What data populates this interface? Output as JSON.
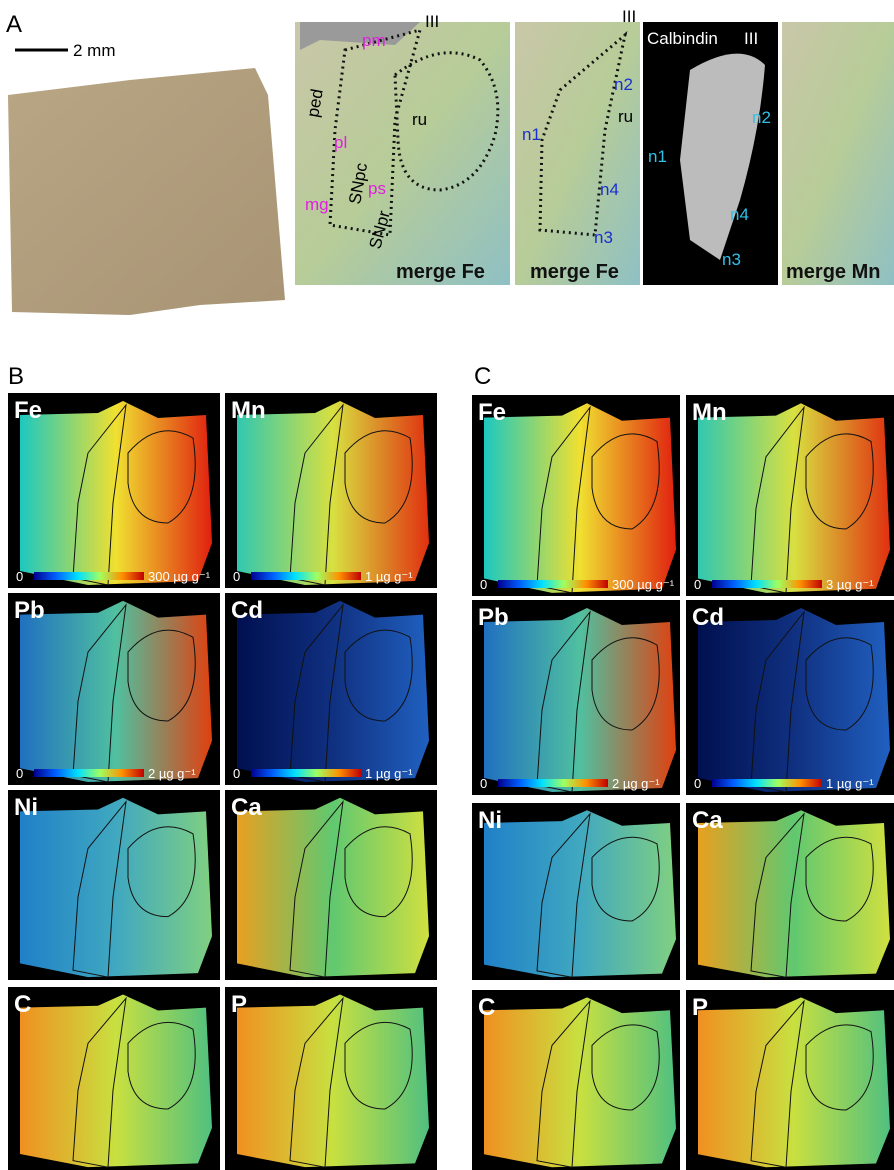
{
  "panel_a": {
    "label": "A",
    "scale_bar": "2 mm",
    "image_1": {
      "labels": [
        "III",
        "pm",
        "ped",
        "pl",
        "SNpc",
        "ps",
        "mg",
        "SNpr",
        "ru"
      ],
      "caption": "merge Fe"
    },
    "image_2": {
      "labels": [
        "III",
        "n2",
        "ru",
        "n1",
        "n4",
        "n3"
      ],
      "caption": "merge Fe"
    },
    "image_3": {
      "title": "Calbindin",
      "labels": [
        "III",
        "n2",
        "n1",
        "n4",
        "n3"
      ]
    },
    "image_4": {
      "caption": "merge Mn"
    }
  },
  "panel_b": {
    "label": "B",
    "maps": [
      {
        "element": "Fe",
        "scale_min": "0",
        "scale_max": "300 µg g⁻¹"
      },
      {
        "element": "Mn",
        "scale_min": "0",
        "scale_max": "1 µg g⁻¹"
      },
      {
        "element": "Pb",
        "scale_min": "0",
        "scale_max": "2 µg g⁻¹"
      },
      {
        "element": "Cd",
        "scale_min": "0",
        "scale_max": "1 µg g⁻¹"
      },
      {
        "element": "Ni"
      },
      {
        "element": "Ca"
      },
      {
        "element": "C"
      },
      {
        "element": "P"
      }
    ]
  },
  "panel_c": {
    "label": "C",
    "maps": [
      {
        "element": "Fe",
        "scale_min": "0",
        "scale_max": "300 µg g⁻¹"
      },
      {
        "element": "Mn",
        "scale_min": "0",
        "scale_max": "3 µg g⁻¹"
      },
      {
        "element": "Pb",
        "scale_min": "0",
        "scale_max": "2 µg g⁻¹"
      },
      {
        "element": "Cd",
        "scale_min": "0",
        "scale_max": "1 µg g⁻¹"
      },
      {
        "element": "Ni"
      },
      {
        "element": "Ca"
      },
      {
        "element": "C"
      },
      {
        "element": "P"
      }
    ]
  }
}
